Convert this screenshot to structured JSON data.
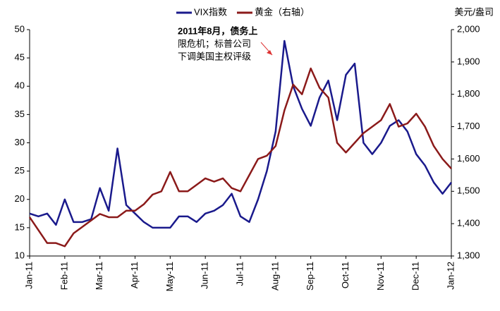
{
  "chart_data": {
    "type": "line",
    "y2label": "美元/盎司",
    "annotation": [
      "2011年8月，债务上",
      "限危机；标普公司",
      "下调美国主权评级"
    ],
    "x": [
      0,
      0.25,
      0.5,
      0.75,
      1,
      1.25,
      1.5,
      1.75,
      2,
      2.25,
      2.5,
      2.75,
      3,
      3.25,
      3.5,
      3.75,
      4,
      4.25,
      4.5,
      4.75,
      5,
      5.25,
      5.5,
      5.75,
      6,
      6.25,
      6.5,
      6.75,
      7,
      7.25,
      7.5,
      7.75,
      8,
      8.25,
      8.5,
      8.75,
      9,
      9.25,
      9.5,
      9.75,
      10,
      10.25,
      10.5,
      10.75,
      11,
      11.25,
      11.5,
      11.75,
      12
    ],
    "series": [
      {
        "name": "VIX指数",
        "color": "#1a1a8c",
        "axis": "y",
        "values": [
          17.5,
          17,
          17.5,
          15.5,
          20,
          16,
          16,
          16.5,
          22,
          18,
          29,
          19,
          17.5,
          16,
          15,
          15,
          15,
          17,
          17,
          16,
          17.5,
          18,
          19,
          21,
          17,
          16,
          20,
          25,
          32,
          48,
          40,
          36,
          33,
          38,
          41,
          34,
          42,
          44,
          30,
          28,
          30,
          33,
          34,
          32,
          28,
          26,
          23,
          21,
          23
        ]
      },
      {
        "name": "黄金（右轴）",
        "color": "#8b1a1a",
        "axis": "y2",
        "values": [
          1420,
          1380,
          1340,
          1340,
          1330,
          1370,
          1390,
          1410,
          1430,
          1420,
          1420,
          1440,
          1440,
          1460,
          1490,
          1500,
          1560,
          1500,
          1500,
          1520,
          1540,
          1530,
          1540,
          1510,
          1500,
          1550,
          1600,
          1610,
          1640,
          1750,
          1830,
          1800,
          1880,
          1820,
          1790,
          1650,
          1620,
          1650,
          1680,
          1700,
          1720,
          1770,
          1700,
          1710,
          1740,
          1700,
          1640,
          1600,
          1570
        ]
      }
    ],
    "xlim": [
      0,
      12
    ],
    "xticks": [
      {
        "value": 0,
        "label": "Jan-11"
      },
      {
        "value": 1,
        "label": "Feb-11"
      },
      {
        "value": 2,
        "label": "Mar-11"
      },
      {
        "value": 3,
        "label": "Apr-11"
      },
      {
        "value": 4,
        "label": "May-11"
      },
      {
        "value": 5,
        "label": "Jun-11"
      },
      {
        "value": 6,
        "label": "Jul-11"
      },
      {
        "value": 7,
        "label": "Aug-11"
      },
      {
        "value": 8,
        "label": "Sep-11"
      },
      {
        "value": 9,
        "label": "Oct-11"
      },
      {
        "value": 10,
        "label": "Nov-11"
      },
      {
        "value": 11,
        "label": "Dec-11"
      },
      {
        "value": 12,
        "label": "Jan-12"
      }
    ],
    "ylim": [
      10,
      50
    ],
    "yticks": [
      10,
      15,
      20,
      25,
      30,
      35,
      40,
      45,
      50
    ],
    "y2lim": [
      1300,
      2000
    ],
    "y2ticks": [
      {
        "value": 1300,
        "label": "1,300"
      },
      {
        "value": 1400,
        "label": "1,400"
      },
      {
        "value": 1500,
        "label": "1,500"
      },
      {
        "value": 1600,
        "label": "1,600"
      },
      {
        "value": 1700,
        "label": "1,700"
      },
      {
        "value": 1800,
        "label": "1,800"
      },
      {
        "value": 1900,
        "label": "1,900"
      },
      {
        "value": 2000,
        "label": "2,000"
      }
    ]
  }
}
